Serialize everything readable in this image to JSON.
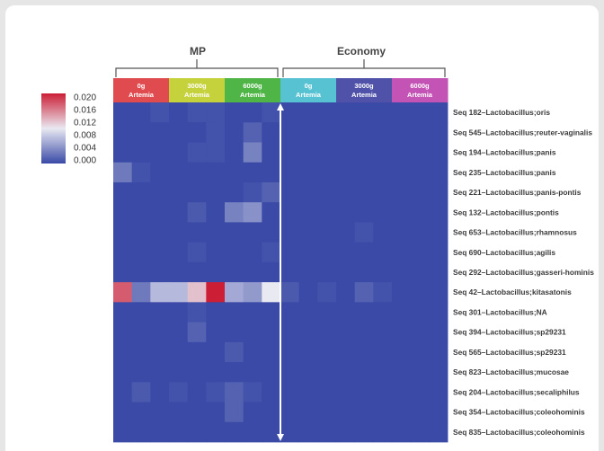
{
  "chart_data": {
    "type": "heatmap",
    "groups": [
      {
        "name": "MP",
        "columns": [
          0,
          1,
          2
        ]
      },
      {
        "name": "Economy",
        "columns": [
          3,
          4,
          5
        ]
      }
    ],
    "column_bands": [
      {
        "label_line1": "0g",
        "label_line2": "Artemia",
        "color": "#df4b4f"
      },
      {
        "label_line1": "3000g",
        "label_line2": "Artemia",
        "color": "#c6d23c"
      },
      {
        "label_line1": "6000g",
        "label_line2": "Artemia",
        "color": "#4fb547"
      },
      {
        "label_line1": "0g",
        "label_line2": "Artemia",
        "color": "#57c3d2"
      },
      {
        "label_line1": "3000g",
        "label_line2": "Artemia",
        "color": "#4f52a8"
      },
      {
        "label_line1": "6000g",
        "label_line2": "Artemia",
        "color": "#c353b4"
      }
    ],
    "samples_per_band": 3,
    "rows": [
      "Seq 182–Lactobacillus;oris",
      "Seq 545–Lactobacillus;reuter-vaginalis",
      "Seq 194–Lactobacillus;panis",
      "Seq 235–Lactobacillus;panis",
      "Seq 221–Lactobacillus;panis-pontis",
      "Seq 132–Lactobacillus;pontis",
      "Seq 653–Lactobacillus;rhamnosus",
      "Seq 690–Lactobacillus;agilis",
      "Seq 292–Lactobacillus;gasseri-hominis",
      "Seq 42–Lactobacillus;kitasatonis",
      "Seq 301–Lactobacillus;NA",
      "Seq 394–Lactobacillus;sp29231",
      "Seq 565–Lactobacillus;sp29231",
      "Seq 823–Lactobacillus;mucosae",
      "Seq 204–Lactobacillus;secaliphilus",
      "Seq 354–Lactobacillus;coleohominis",
      "Seq 835–Lactobacillus;coleohominis"
    ],
    "values": [
      [
        0.0,
        0.0,
        0.0005,
        0.0,
        0.0005,
        0.0005,
        0.0,
        0.0,
        0.0005,
        0.0,
        0.0,
        0.0,
        0.0,
        0.0,
        0.0,
        0.0,
        0.0,
        0.0
      ],
      [
        0.0,
        0.0,
        0.0,
        0.0,
        0.0,
        0.0005,
        0.0,
        0.0015,
        0.0,
        0.0,
        0.0,
        0.0,
        0.0,
        0.0,
        0.0,
        0.0,
        0.0,
        0.0
      ],
      [
        0.0,
        0.0,
        0.0,
        0.0,
        0.0005,
        0.0005,
        0.0,
        0.0035,
        0.0,
        0.0,
        0.0,
        0.0,
        0.0,
        0.0,
        0.0,
        0.0,
        0.0,
        0.0
      ],
      [
        0.003,
        0.0005,
        0.0,
        0.0,
        0.0,
        0.0,
        0.0,
        0.0,
        0.0,
        0.0,
        0.0,
        0.0,
        0.0,
        0.0,
        0.0,
        0.0,
        0.0,
        0.0
      ],
      [
        0.0,
        0.0,
        0.0,
        0.0,
        0.0,
        0.0,
        0.0,
        0.0005,
        0.0015,
        0.0,
        0.0,
        0.0,
        0.0,
        0.0,
        0.0,
        0.0,
        0.0,
        0.0
      ],
      [
        0.0,
        0.0,
        0.0,
        0.0,
        0.001,
        0.0,
        0.0035,
        0.0045,
        0.0,
        0.0,
        0.0,
        0.0,
        0.0,
        0.0,
        0.0,
        0.0,
        0.0,
        0.0
      ],
      [
        0.0,
        0.0,
        0.0,
        0.0,
        0.0,
        0.0,
        0.0,
        0.0,
        0.0,
        0.0,
        0.0,
        0.0,
        0.0,
        0.0005,
        0.0,
        0.0,
        0.0,
        0.0
      ],
      [
        0.0,
        0.0,
        0.0,
        0.0,
        0.0005,
        0.0,
        0.0,
        0.0,
        0.0005,
        0.0,
        0.0,
        0.0,
        0.0,
        0.0,
        0.0,
        0.0,
        0.0,
        0.0
      ],
      [
        0.0,
        0.0,
        0.0,
        0.0,
        0.0,
        0.0,
        0.0,
        0.0,
        0.0,
        0.0,
        0.0,
        0.0,
        0.0,
        0.0,
        0.0,
        0.0,
        0.0,
        0.0
      ],
      [
        0.017,
        0.003,
        0.007,
        0.007,
        0.012,
        0.02,
        0.006,
        0.005,
        0.01,
        0.001,
        0.0,
        0.0005,
        0.0,
        0.0015,
        0.0005,
        0.0,
        0.0,
        0.0
      ],
      [
        0.0,
        0.0,
        0.0,
        0.0,
        0.0005,
        0.0,
        0.0,
        0.0,
        0.0,
        0.0,
        0.0,
        0.0,
        0.0,
        0.0,
        0.0,
        0.0,
        0.0,
        0.0
      ],
      [
        0.0,
        0.0,
        0.0,
        0.0,
        0.0015,
        0.0,
        0.0,
        0.0,
        0.0,
        0.0,
        0.0,
        0.0,
        0.0,
        0.0,
        0.0,
        0.0,
        0.0,
        0.0
      ],
      [
        0.0,
        0.0,
        0.0,
        0.0,
        0.0,
        0.0,
        0.001,
        0.0,
        0.0,
        0.0,
        0.0,
        0.0,
        0.0,
        0.0,
        0.0,
        0.0,
        0.0,
        0.0
      ],
      [
        0.0,
        0.0,
        0.0,
        0.0,
        0.0,
        0.0,
        0.0,
        0.0,
        0.0,
        0.0,
        0.0,
        0.0,
        0.0,
        0.0,
        0.0,
        0.0,
        0.0,
        0.0
      ],
      [
        0.0,
        0.001,
        0.0,
        0.0005,
        0.0,
        0.0005,
        0.0015,
        0.0005,
        0.0,
        0.0,
        0.0,
        0.0,
        0.0,
        0.0,
        0.0,
        0.0,
        0.0,
        0.0
      ],
      [
        0.0,
        0.0,
        0.0,
        0.0,
        0.0,
        0.0,
        0.0015,
        0.0,
        0.0,
        0.0,
        0.0,
        0.0,
        0.0,
        0.0,
        0.0,
        0.0,
        0.0,
        0.0
      ],
      [
        0.0,
        0.0,
        0.0,
        0.0,
        0.0,
        0.0,
        0.0,
        0.0,
        0.0,
        0.0,
        0.0,
        0.0,
        0.0,
        0.0,
        0.0,
        0.0,
        0.0,
        0.0
      ]
    ],
    "colorbar": {
      "min": 0.0,
      "max": 0.02,
      "ticks": [
        "0.020",
        "0.016",
        "0.012",
        "0.008",
        "0.004",
        "0.000"
      ],
      "colors": [
        "#3a4aa6",
        "#e9e9f2",
        "#cc1f36"
      ]
    },
    "divider_color": "#ffffff",
    "bracket_color": "#555555"
  }
}
